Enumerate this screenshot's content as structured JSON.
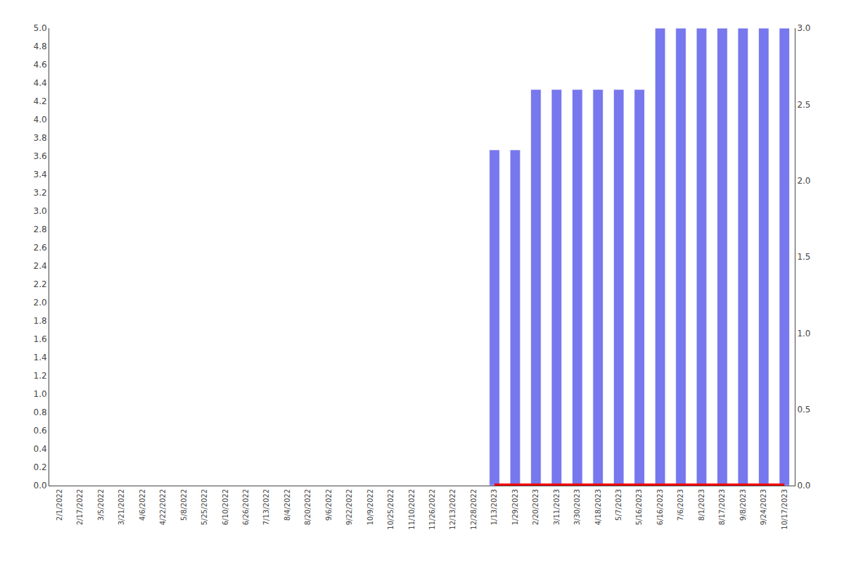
{
  "chart_data": {
    "type": "bar",
    "categories": [
      "2/1/2022",
      "2/17/2022",
      "3/5/2022",
      "3/21/2022",
      "4/6/2022",
      "4/22/2022",
      "5/8/2022",
      "5/25/2022",
      "6/10/2022",
      "6/26/2022",
      "7/13/2022",
      "8/4/2022",
      "8/20/2022",
      "9/6/2022",
      "9/22/2022",
      "10/9/2022",
      "10/25/2022",
      "11/10/2022",
      "11/26/2022",
      "12/13/2022",
      "12/28/2022",
      "1/13/2023",
      "1/29/2023",
      "2/20/2023",
      "3/11/2023",
      "3/30/2023",
      "4/18/2023",
      "5/7/2023",
      "5/16/2023",
      "6/16/2023",
      "7/6/2023",
      "8/1/2023",
      "8/17/2023",
      "9/8/2023",
      "9/24/2023",
      "10/17/2023"
    ],
    "ylim": [
      0,
      5
    ],
    "yticks": [
      {
        "value": 0,
        "label": "0.0"
      },
      0.2,
      0.4,
      0.6,
      0.8,
      {
        "value": 1,
        "label": "1.0"
      },
      1.2,
      1.4,
      1.6,
      1.8,
      {
        "value": 2,
        "label": "2.0"
      },
      2.2,
      2.4,
      2.6,
      2.8,
      {
        "value": 3,
        "label": "3.0"
      },
      3.2,
      3.4,
      3.6,
      3.8,
      {
        "value": 4,
        "label": "4.0"
      },
      4.2,
      4.4,
      4.6,
      4.8,
      {
        "value": 5,
        "label": "5.0"
      }
    ],
    "y2lim": [
      0,
      3
    ],
    "y2ticks": [
      {
        "value": 0,
        "label": "0.0"
      },
      0.5,
      {
        "value": 1,
        "label": "1.0"
      },
      1.5,
      {
        "value": 2,
        "label": "2.0"
      },
      2.5,
      {
        "value": 3,
        "label": "3.0"
      }
    ],
    "grid": false,
    "series": [
      {
        "type": "bar",
        "color": "#7777ee",
        "values": [
          0,
          0,
          0,
          0,
          0,
          0,
          0,
          0,
          0,
          0,
          0,
          0,
          0,
          0,
          0,
          0,
          0,
          0,
          0,
          0,
          0,
          3.67,
          3.67,
          4.33,
          4.33,
          4.33,
          4.33,
          4.33,
          4.33,
          5.0,
          5.0,
          5.0,
          5.0,
          5.0,
          5.0,
          5.0
        ]
      },
      {
        "type": "line",
        "axis": "y2",
        "color": "#ff0000",
        "values": [
          null,
          null,
          null,
          null,
          null,
          null,
          null,
          null,
          null,
          null,
          null,
          null,
          null,
          null,
          null,
          null,
          null,
          null,
          null,
          null,
          null,
          0,
          0,
          0,
          0,
          0,
          0,
          0,
          0,
          0,
          0,
          0,
          0,
          0,
          0,
          0
        ]
      }
    ]
  }
}
